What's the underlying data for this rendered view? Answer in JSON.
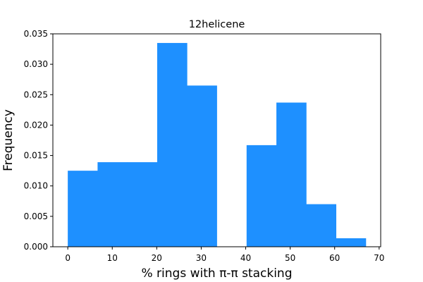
{
  "chart_data": {
    "type": "bar",
    "title": "12helicene",
    "xlabel": "% rings with π-π stacking",
    "ylabel": "Frequency",
    "xlim": [
      -3.35,
      70.35
    ],
    "ylim": [
      0,
      0.035
    ],
    "xticks": [
      0,
      10,
      20,
      30,
      40,
      50,
      60,
      70
    ],
    "yticks": [
      0.0,
      0.005,
      0.01,
      0.015,
      0.02,
      0.025,
      0.03,
      0.035
    ],
    "xtick_labels": [
      "0",
      "10",
      "20",
      "30",
      "40",
      "50",
      "60",
      "70"
    ],
    "ytick_labels": [
      "0.000",
      "0.005",
      "0.010",
      "0.015",
      "0.020",
      "0.025",
      "0.030",
      "0.035"
    ],
    "bar_color": "#1e90ff",
    "bins": [
      {
        "x0": 0.0,
        "x1": 6.7,
        "value": 0.0125
      },
      {
        "x0": 6.7,
        "x1": 13.4,
        "value": 0.0139
      },
      {
        "x0": 13.4,
        "x1": 20.1,
        "value": 0.0139
      },
      {
        "x0": 20.1,
        "x1": 26.8,
        "value": 0.0335
      },
      {
        "x0": 26.8,
        "x1": 33.5,
        "value": 0.0265
      },
      {
        "x0": 33.5,
        "x1": 40.2,
        "value": 0.0
      },
      {
        "x0": 40.2,
        "x1": 46.9,
        "value": 0.0167
      },
      {
        "x0": 46.9,
        "x1": 53.6,
        "value": 0.0237
      },
      {
        "x0": 53.6,
        "x1": 60.3,
        "value": 0.007
      },
      {
        "x0": 60.3,
        "x1": 67.0,
        "value": 0.0014
      }
    ]
  }
}
